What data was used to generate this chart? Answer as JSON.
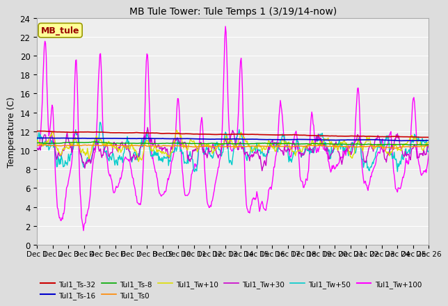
{
  "title": "MB Tule Tower: Tule Temps 1 (3/19/14-now)",
  "ylabel": "Temperature (C)",
  "xlabel": "",
  "ylim": [
    0,
    24
  ],
  "yticks": [
    0,
    2,
    4,
    6,
    8,
    10,
    12,
    14,
    16,
    18,
    20,
    22,
    24
  ],
  "legend_label_box": "MB_tule",
  "n_days": 25,
  "series": {
    "Tul1_Ts-32": {
      "color": "#cc0000",
      "lw": 1.2,
      "zorder": 5
    },
    "Tul1_Ts-16": {
      "color": "#0000cc",
      "lw": 1.2,
      "zorder": 5
    },
    "Tul1_Ts-8": {
      "color": "#00aa00",
      "lw": 1.0,
      "zorder": 4
    },
    "Tul1_Ts0": {
      "color": "#ff8800",
      "lw": 1.0,
      "zorder": 4
    },
    "Tul1_Tw+10": {
      "color": "#dddd00",
      "lw": 1.0,
      "zorder": 3
    },
    "Tul1_Tw+30": {
      "color": "#cc00cc",
      "lw": 1.0,
      "zorder": 3
    },
    "Tul1_Tw+50": {
      "color": "#00cccc",
      "lw": 1.0,
      "zorder": 3
    },
    "Tul1_Tw+100": {
      "color": "#ff00ff",
      "lw": 1.0,
      "zorder": 6
    }
  },
  "bg_color": "#dddddd",
  "plot_bg": "#eeeeee",
  "grid_color": "#ffffff",
  "xtick_labels": [
    "Dec 1",
    "Dec 12",
    "Dec 13",
    "Dec 14",
    "Dec 15",
    "Dec 16",
    "Dec 17",
    "Dec 18",
    "Dec 19",
    "Dec 20",
    "Dec 21",
    "Dec 22",
    "Dec 23",
    "Dec 24",
    "Dec 25",
    "Dec 26"
  ]
}
